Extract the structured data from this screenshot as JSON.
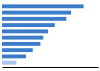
{
  "chart_data": {
    "type": "bar",
    "orientation": "horizontal",
    "categories": [
      null,
      null,
      null,
      null,
      null,
      null,
      null,
      null,
      null,
      null
    ],
    "values": [
      85,
      72,
      67,
      55,
      48,
      43,
      40,
      32,
      25,
      15
    ],
    "colors": [
      "#3d7cc9",
      "#3d7cc9",
      "#3d7cc9",
      "#3d7cc9",
      "#3d7cc9",
      "#3d7cc9",
      "#3d7cc9",
      "#3d7cc9",
      "#3d7cc9",
      "#a8c4e8"
    ],
    "xlim": [
      0,
      100
    ],
    "tick_labels": false
  }
}
